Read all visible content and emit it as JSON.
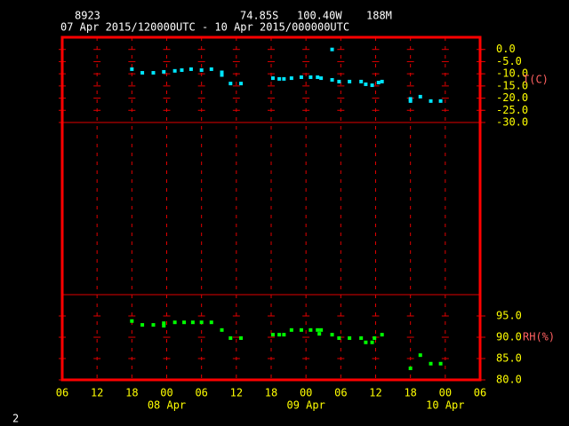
{
  "header": {
    "station": "8923",
    "lat": "74.85S",
    "lon": "100.40W",
    "elev": "188M",
    "period": "07 Apr 2015/120000UTC - 10 Apr 2015/000000UTC"
  },
  "footer": "2",
  "chart_data": [
    {
      "type": "scatter",
      "y_label": "T(C)",
      "color": "#00e5ff",
      "x": [
        12,
        13.8,
        15.7,
        17.5,
        19.4,
        20.6,
        22.2,
        24,
        25.7,
        27.5,
        27.5,
        29,
        30.8,
        36.3,
        37.4,
        38.2,
        39.5,
        41.2,
        42.8,
        44,
        44.6,
        46.5,
        46.5,
        47.7,
        49.5,
        51.5,
        52.3,
        53.4,
        54.5,
        55.1,
        60,
        60,
        61.7,
        63.5,
        65.2
      ],
      "values": [
        -8.1,
        -9.6,
        -9.6,
        -9.2,
        -8.8,
        -8.5,
        -8.1,
        -8.5,
        -8.1,
        -9.4,
        -10.5,
        -14,
        -14,
        -11.8,
        -12.1,
        -12.1,
        -11.8,
        -11.4,
        -11.4,
        -11.4,
        -11.8,
        0,
        -12.5,
        -13.2,
        -13.2,
        -13.2,
        -14.3,
        -14.7,
        -13.6,
        -13.2,
        -21.2,
        -20.3,
        -19.4,
        -21.2,
        -21.2
      ],
      "xlim": [
        0,
        72
      ],
      "ylim": [
        -30,
        5
      ],
      "yticks": [
        {
          "value": 0,
          "label": "0.0"
        },
        {
          "value": -5,
          "label": "-5.0"
        },
        {
          "value": -10,
          "label": "-10.0"
        },
        {
          "value": -15,
          "label": "-15.0"
        },
        {
          "value": -20,
          "label": "-20.0"
        },
        {
          "value": -25,
          "label": "-25.0"
        },
        {
          "value": -30,
          "label": "-30.0"
        }
      ]
    },
    {
      "type": "scatter",
      "y_label": "RH(%)",
      "color": "#00ff00",
      "x": [
        12,
        13.8,
        15.7,
        17.5,
        17.5,
        19.4,
        21,
        22.5,
        24,
        25.7,
        27.5,
        29,
        30.8,
        36.3,
        37.4,
        38.2,
        39.5,
        41.2,
        42.8,
        44,
        44.3,
        44.6,
        46.5,
        47.7,
        49.5,
        51.5,
        52.3,
        53.4,
        53.8,
        55.1,
        60,
        61.7,
        63.5,
        65.2
      ],
      "values": [
        93.8,
        92.9,
        92.9,
        93.3,
        92.7,
        93.5,
        93.5,
        93.5,
        93.5,
        93.5,
        91.7,
        89.8,
        89.8,
        90.6,
        90.6,
        90.6,
        91.7,
        91.7,
        91.7,
        91.7,
        90.8,
        91.7,
        90.6,
        89.8,
        89.8,
        89.8,
        88.8,
        88.8,
        89.8,
        90.6,
        82.7,
        85.8,
        83.8,
        83.8
      ],
      "xlim": [
        0,
        72
      ],
      "ylim": [
        80,
        100
      ],
      "yticks": [
        {
          "value": 95,
          "label": "95.0"
        },
        {
          "value": 90,
          "label": "90.0"
        },
        {
          "value": 85,
          "label": "85.0"
        },
        {
          "value": 80,
          "label": "80.0"
        }
      ],
      "xticks": [
        {
          "value": 0,
          "label": "06"
        },
        {
          "value": 6,
          "label": "12"
        },
        {
          "value": 12,
          "label": "18"
        },
        {
          "value": 18,
          "label": "00"
        },
        {
          "value": 24,
          "label": "06"
        },
        {
          "value": 30,
          "label": "12"
        },
        {
          "value": 36,
          "label": "18"
        },
        {
          "value": 42,
          "label": "00"
        },
        {
          "value": 48,
          "label": "06"
        },
        {
          "value": 54,
          "label": "12"
        },
        {
          "value": 60,
          "label": "18"
        },
        {
          "value": 66,
          "label": "00"
        },
        {
          "value": 72,
          "label": "06"
        }
      ],
      "date_labels": [
        {
          "value": 18,
          "label": "08 Apr"
        },
        {
          "value": 42,
          "label": "09 Apr"
        },
        {
          "value": 66,
          "label": "10 Apr"
        }
      ]
    }
  ]
}
